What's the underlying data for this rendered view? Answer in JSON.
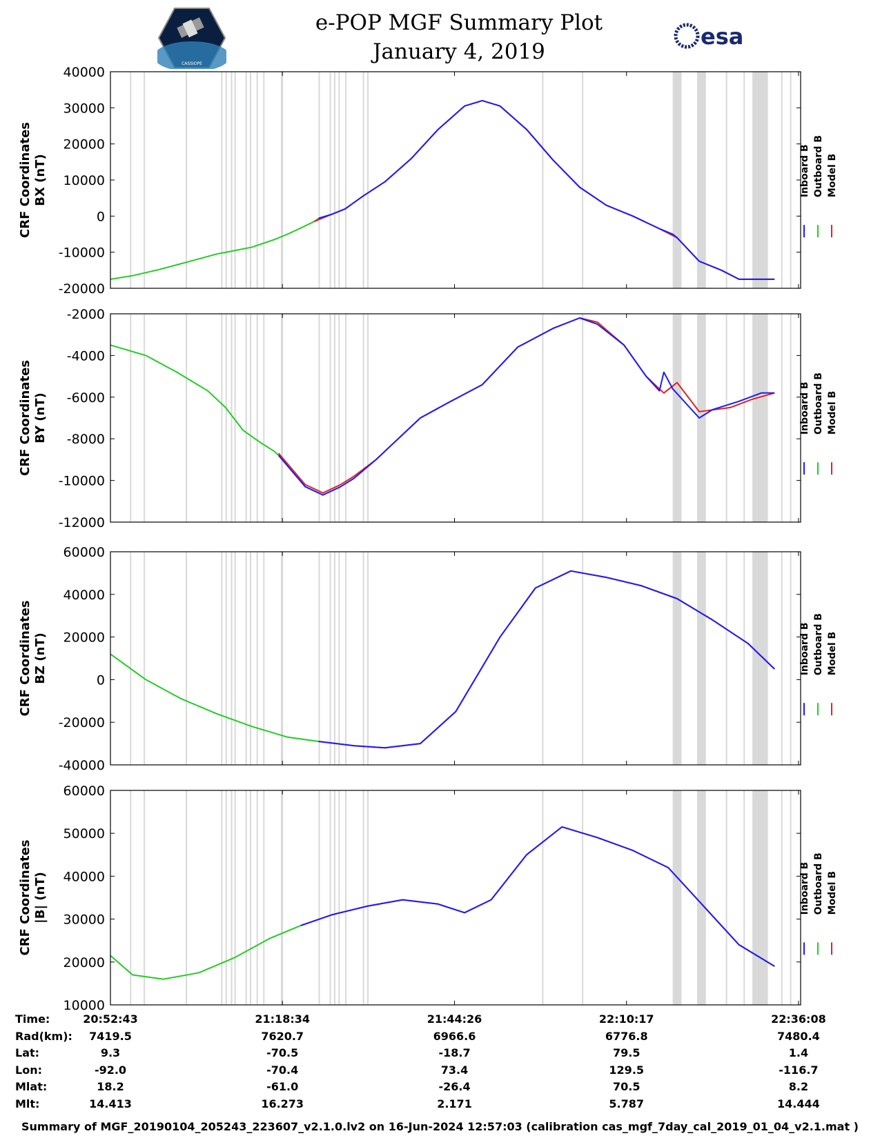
{
  "header": {
    "title": "e-POP MGF Summary Plot",
    "date": "January 4, 2019",
    "logo_left": "e-POP CASSIOPE",
    "logo_right": "esa"
  },
  "chart_data": [
    {
      "type": "line",
      "ylabel_line1": "CRF Coordinates",
      "ylabel_line2": "BX (nT)",
      "ylim": [
        -20000,
        40000
      ],
      "yticks": [
        -20000,
        -10000,
        0,
        10000,
        20000,
        30000,
        40000
      ],
      "legend": [
        "Inboard B",
        "Outboard B",
        "Model B"
      ],
      "series": [
        {
          "name": "Outboard B",
          "color": "#22cc22",
          "x_min": [
            0,
            37
          ],
          "y": [
            [
              0,
              -17500
            ],
            [
              5,
              -16500
            ],
            [
              11,
              -14800
            ],
            [
              18,
              -12500
            ],
            [
              24,
              -10500
            ],
            [
              27,
              -9800
            ],
            [
              32,
              -8600
            ],
            [
              37,
              -6500
            ],
            [
              40,
              -5000
            ],
            [
              43,
              -3300
            ],
            [
              46,
              -1500
            ],
            [
              47,
              -600
            ]
          ]
        },
        {
          "name": "Model B",
          "color": "#dd2222",
          "y": [
            [
              46,
              -1500
            ],
            [
              50,
              500
            ],
            [
              53,
              2000
            ],
            [
              57,
              5500
            ],
            [
              62,
              9500
            ],
            [
              68,
              16000
            ],
            [
              74,
              24000
            ],
            [
              80,
              30500
            ],
            [
              84,
              32000
            ],
            [
              88,
              30500
            ],
            [
              94,
              24000
            ],
            [
              100,
              15500
            ],
            [
              106,
              8000
            ],
            [
              112,
              3000
            ],
            [
              118,
              0
            ],
            [
              124,
              -3500
            ],
            [
              128,
              -6000
            ],
            [
              133,
              -12500
            ],
            [
              138,
              -15000
            ],
            [
              142,
              -17500
            ],
            [
              147,
              -17500
            ],
            [
              150,
              -17500
            ]
          ]
        },
        {
          "name": "Inboard B",
          "color": "#1a1aff",
          "y": [
            [
              47,
              -600
            ],
            [
              50,
              500
            ],
            [
              53,
              2000
            ],
            [
              57,
              5500
            ],
            [
              62,
              9500
            ],
            [
              68,
              16000
            ],
            [
              74,
              24000
            ],
            [
              80,
              30500
            ],
            [
              84,
              32000
            ],
            [
              88,
              30500
            ],
            [
              94,
              24000
            ],
            [
              100,
              15500
            ],
            [
              106,
              8000
            ],
            [
              112,
              3000
            ],
            [
              118,
              0
            ],
            [
              124,
              -3500
            ],
            [
              127,
              -5000
            ],
            [
              128,
              -6000
            ],
            [
              133,
              -12500
            ],
            [
              138,
              -15000
            ],
            [
              142,
              -17500
            ],
            [
              147,
              -17500
            ],
            [
              150,
              -17500
            ]
          ]
        }
      ]
    },
    {
      "type": "line",
      "ylabel_line1": "CRF Coordinates",
      "ylabel_line2": "BY (nT)",
      "ylim": [
        -12000,
        -2000
      ],
      "yticks": [
        -12000,
        -10000,
        -8000,
        -6000,
        -4000,
        -2000
      ],
      "legend": [
        "Inboard B",
        "Outboard B",
        "Model B"
      ],
      "series": [
        {
          "name": "Outboard B",
          "color": "#22cc22",
          "y": [
            [
              0,
              -3500
            ],
            [
              8,
              -4000
            ],
            [
              15,
              -4800
            ],
            [
              22,
              -5700
            ],
            [
              26,
              -6500
            ],
            [
              30,
              -7600
            ],
            [
              34,
              -8200
            ],
            [
              37,
              -8600
            ],
            [
              40,
              -9200
            ]
          ]
        },
        {
          "name": "Model B",
          "color": "#dd2222",
          "y": [
            [
              38,
              -8700
            ],
            [
              44,
              -10200
            ],
            [
              48,
              -10600
            ],
            [
              52,
              -10200
            ],
            [
              55,
              -9800
            ],
            [
              60,
              -9000
            ],
            [
              64,
              -8200
            ],
            [
              70,
              -7000
            ],
            [
              76,
              -6300
            ],
            [
              84,
              -5400
            ],
            [
              92,
              -3600
            ],
            [
              100,
              -2700
            ],
            [
              106,
              -2200
            ],
            [
              110,
              -2400
            ],
            [
              116,
              -3500
            ],
            [
              121,
              -5000
            ],
            [
              125,
              -5800
            ],
            [
              128,
              -5300
            ],
            [
              133,
              -6700
            ],
            [
              140,
              -6500
            ],
            [
              145,
              -6100
            ],
            [
              150,
              -5800
            ]
          ]
        },
        {
          "name": "Inboard B",
          "color": "#1a1aff",
          "y": [
            [
              38,
              -8800
            ],
            [
              44,
              -10300
            ],
            [
              48,
              -10700
            ],
            [
              52,
              -10300
            ],
            [
              55,
              -9900
            ],
            [
              60,
              -9000
            ],
            [
              64,
              -8200
            ],
            [
              70,
              -7000
            ],
            [
              76,
              -6300
            ],
            [
              84,
              -5400
            ],
            [
              92,
              -3600
            ],
            [
              100,
              -2700
            ],
            [
              106,
              -2200
            ],
            [
              110,
              -2500
            ],
            [
              116,
              -3500
            ],
            [
              121,
              -5000
            ],
            [
              124,
              -5700
            ],
            [
              125,
              -4800
            ],
            [
              127,
              -5600
            ],
            [
              133,
              -7000
            ],
            [
              136,
              -6600
            ],
            [
              142,
              -6200
            ],
            [
              147,
              -5800
            ],
            [
              150,
              -5800
            ]
          ]
        }
      ]
    },
    {
      "type": "line",
      "ylabel_line1": "CRF Coordinates",
      "ylabel_line2": "BZ (nT)",
      "ylim": [
        -40000,
        60000
      ],
      "yticks": [
        -40000,
        -20000,
        0,
        20000,
        40000,
        60000
      ],
      "legend": [
        "Inboard B",
        "Outboard B",
        "Model B"
      ],
      "series": [
        {
          "name": "Outboard B",
          "color": "#22cc22",
          "y": [
            [
              0,
              12000
            ],
            [
              8,
              0
            ],
            [
              16,
              -9000
            ],
            [
              24,
              -16000
            ],
            [
              32,
              -22000
            ],
            [
              40,
              -27000
            ],
            [
              47,
              -29000
            ]
          ]
        },
        {
          "name": "Model B",
          "color": "#dd2222",
          "y": [
            [
              47,
              -29000
            ],
            [
              55,
              -31000
            ],
            [
              62,
              -32000
            ],
            [
              70,
              -30000
            ],
            [
              78,
              -15000
            ],
            [
              88,
              20000
            ],
            [
              96,
              43000
            ],
            [
              104,
              51000
            ],
            [
              112,
              48000
            ],
            [
              120,
              44000
            ],
            [
              128,
              38000
            ],
            [
              136,
              28000
            ],
            [
              144,
              17000
            ],
            [
              150,
              5000
            ]
          ]
        },
        {
          "name": "Inboard B",
          "color": "#1a1aff",
          "y": [
            [
              47,
              -29000
            ],
            [
              55,
              -31000
            ],
            [
              62,
              -32000
            ],
            [
              70,
              -30000
            ],
            [
              78,
              -15000
            ],
            [
              88,
              20000
            ],
            [
              96,
              43000
            ],
            [
              104,
              51000
            ],
            [
              112,
              48000
            ],
            [
              120,
              44000
            ],
            [
              128,
              38000
            ],
            [
              136,
              28000
            ],
            [
              144,
              17000
            ],
            [
              150,
              5000
            ]
          ]
        }
      ]
    },
    {
      "type": "line",
      "ylabel_line1": "CRF Coordinates",
      "ylabel_line2": "|B| (nT)",
      "ylim": [
        10000,
        60000
      ],
      "yticks": [
        10000,
        20000,
        30000,
        40000,
        50000,
        60000
      ],
      "legend": [
        "Inboard B",
        "Outboard B",
        "Model B"
      ],
      "series": [
        {
          "name": "Outboard B",
          "color": "#22cc22",
          "y": [
            [
              0,
              21500
            ],
            [
              5,
              17000
            ],
            [
              12,
              16000
            ],
            [
              20,
              17500
            ],
            [
              28,
              21000
            ],
            [
              36,
              25500
            ],
            [
              43,
              28500
            ]
          ]
        },
        {
          "name": "Model B",
          "color": "#dd2222",
          "y": [
            [
              43,
              28500
            ],
            [
              50,
              31000
            ],
            [
              58,
              33000
            ],
            [
              66,
              34500
            ],
            [
              74,
              33500
            ],
            [
              80,
              31500
            ],
            [
              86,
              34500
            ],
            [
              94,
              45000
            ],
            [
              102,
              51500
            ],
            [
              110,
              49000
            ],
            [
              118,
              46000
            ],
            [
              126,
              42000
            ],
            [
              134,
              33000
            ],
            [
              142,
              24000
            ],
            [
              150,
              19000
            ]
          ]
        },
        {
          "name": "Inboard B",
          "color": "#1a1aff",
          "y": [
            [
              43,
              28500
            ],
            [
              50,
              31000
            ],
            [
              58,
              33000
            ],
            [
              66,
              34500
            ],
            [
              74,
              33500
            ],
            [
              80,
              31500
            ],
            [
              86,
              34500
            ],
            [
              94,
              45000
            ],
            [
              102,
              51500
            ],
            [
              110,
              49000
            ],
            [
              118,
              46000
            ],
            [
              126,
              42000
            ],
            [
              134,
              33000
            ],
            [
              142,
              24000
            ],
            [
              150,
              19000
            ]
          ]
        }
      ]
    }
  ],
  "gaps_min": [
    [
      4.4,
      4.6
    ],
    [
      7.5,
      7.7
    ],
    [
      17,
      17.2
    ],
    [
      25,
      25.3
    ],
    [
      26,
      26.3
    ],
    [
      27.2,
      27.5
    ],
    [
      28,
      28.3
    ],
    [
      30.5,
      30.7
    ],
    [
      31.5,
      31.7
    ],
    [
      33,
      33.2
    ],
    [
      34.5,
      34.7
    ],
    [
      38.5,
      39
    ],
    [
      47,
      47.3
    ],
    [
      49.5,
      49.7
    ],
    [
      50.5,
      50.8
    ],
    [
      51.5,
      51.8
    ],
    [
      53,
      53.3
    ],
    [
      57,
      57.2
    ],
    [
      58,
      58.3
    ],
    [
      97.5,
      97.8
    ],
    [
      106.5,
      106.8
    ],
    [
      127,
      129
    ],
    [
      132.5,
      134.5
    ],
    [
      139,
      139.3
    ],
    [
      143,
      143.3
    ],
    [
      145,
      148.5
    ],
    [
      151.5,
      151.8
    ],
    [
      153.5,
      153.8
    ]
  ],
  "x_range_min": [
    0,
    155.9
  ],
  "x_tick_min": [
    0,
    38.85,
    77.72,
    116.57,
    155.42
  ],
  "info": {
    "labels": [
      "Time:",
      "Rad(km):",
      "Lat:",
      "Lon:",
      "Mlat:",
      "Mlt:"
    ],
    "columns": [
      [
        "20:52:43",
        "7419.5",
        "9.3",
        "-92.0",
        "18.2",
        "14.413"
      ],
      [
        "21:18:34",
        "7620.7",
        "-70.5",
        "-70.4",
        "-61.0",
        "16.273"
      ],
      [
        "21:44:26",
        "6966.6",
        "-18.7",
        "73.4",
        "-26.4",
        "2.171"
      ],
      [
        "22:10:17",
        "6776.8",
        "79.5",
        "129.5",
        "70.5",
        "5.787"
      ],
      [
        "22:36:08",
        "7480.4",
        "1.4",
        "-116.7",
        "8.2",
        "14.444"
      ]
    ]
  },
  "footer": "Summary of MGF_20190104_205243_223607_v2.1.0.lv2 on 16-Jun-2024 12:57:03 (calibration cas_mgf_7day_cal_2019_01_04_v2.1.mat )",
  "colors": {
    "inboard": "#1a1aff",
    "outboard": "#22cc22",
    "model": "#dd2222",
    "gap": "#d9d9d9"
  }
}
